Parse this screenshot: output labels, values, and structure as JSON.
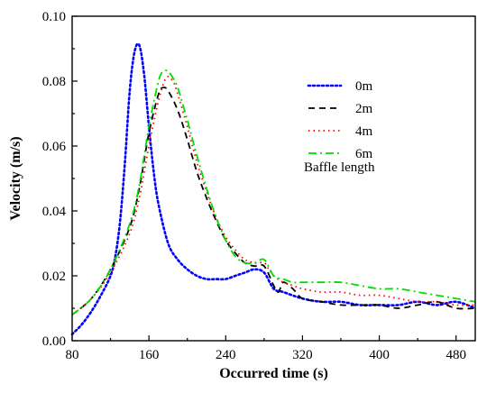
{
  "chart_data": {
    "type": "line",
    "xlabel": "Occurred time (s)",
    "ylabel": "Velocity (m/s)",
    "xlim": [
      80,
      500
    ],
    "ylim": [
      0.0,
      0.1
    ],
    "xticks": [
      80,
      160,
      240,
      320,
      400,
      480
    ],
    "yticks": [
      0.0,
      0.02,
      0.04,
      0.06,
      0.08,
      0.1
    ],
    "xtick_labels": [
      "80",
      "160",
      "240",
      "320",
      "400",
      "480"
    ],
    "ytick_labels": [
      "0.00",
      "0.02",
      "0.04",
      "0.06",
      "0.08",
      "0.10"
    ],
    "grid": false,
    "legend_title": "Baffle length",
    "legend_position": "top-right",
    "series": [
      {
        "name": "0m",
        "color": "#0000ff",
        "dash": "2,3",
        "x": [
          80,
          90,
          100,
          110,
          120,
          125,
          130,
          135,
          140,
          145,
          150,
          155,
          160,
          165,
          170,
          180,
          190,
          200,
          210,
          220,
          230,
          240,
          250,
          260,
          270,
          280,
          290,
          300,
          320,
          340,
          360,
          380,
          400,
          420,
          440,
          460,
          480,
          500
        ],
        "y": [
          0.002,
          0.005,
          0.009,
          0.014,
          0.02,
          0.026,
          0.037,
          0.055,
          0.077,
          0.089,
          0.091,
          0.082,
          0.066,
          0.052,
          0.042,
          0.03,
          0.025,
          0.022,
          0.02,
          0.019,
          0.019,
          0.019,
          0.02,
          0.021,
          0.022,
          0.021,
          0.016,
          0.015,
          0.013,
          0.012,
          0.012,
          0.011,
          0.011,
          0.011,
          0.012,
          0.011,
          0.012,
          0.01
        ]
      },
      {
        "name": "2m",
        "color": "#000000",
        "dash": "7,5",
        "x": [
          80,
          100,
          120,
          140,
          150,
          160,
          170,
          175,
          180,
          190,
          200,
          210,
          220,
          230,
          240,
          250,
          260,
          270,
          280,
          290,
          295,
          300,
          310,
          320,
          340,
          360,
          380,
          400,
          420,
          440,
          460,
          480,
          500
        ],
        "y": [
          0.008,
          0.013,
          0.022,
          0.035,
          0.047,
          0.064,
          0.076,
          0.078,
          0.077,
          0.071,
          0.062,
          0.052,
          0.044,
          0.037,
          0.031,
          0.027,
          0.024,
          0.023,
          0.023,
          0.017,
          0.015,
          0.018,
          0.016,
          0.013,
          0.012,
          0.011,
          0.011,
          0.011,
          0.01,
          0.011,
          0.012,
          0.01,
          0.01
        ]
      },
      {
        "name": "4m",
        "color": "#ff0000",
        "dash": "1.5,4",
        "x": [
          80,
          100,
          120,
          140,
          150,
          160,
          170,
          178,
          185,
          190,
          200,
          210,
          220,
          230,
          240,
          250,
          260,
          270,
          280,
          285,
          290,
          300,
          310,
          320,
          340,
          360,
          380,
          400,
          420,
          440,
          460,
          480,
          500
        ],
        "y": [
          0.008,
          0.013,
          0.021,
          0.033,
          0.044,
          0.06,
          0.074,
          0.081,
          0.08,
          0.076,
          0.066,
          0.055,
          0.046,
          0.038,
          0.032,
          0.028,
          0.025,
          0.024,
          0.024,
          0.022,
          0.02,
          0.018,
          0.017,
          0.016,
          0.015,
          0.015,
          0.014,
          0.014,
          0.013,
          0.012,
          0.012,
          0.011,
          0.011
        ]
      },
      {
        "name": "6m",
        "color": "#00dd00",
        "dash": "9,4,2,4",
        "x": [
          80,
          100,
          120,
          140,
          150,
          160,
          170,
          175,
          180,
          185,
          190,
          200,
          210,
          220,
          230,
          240,
          250,
          260,
          270,
          280,
          290,
          300,
          310,
          320,
          340,
          360,
          380,
          400,
          420,
          440,
          460,
          480,
          500
        ],
        "y": [
          0.008,
          0.013,
          0.022,
          0.036,
          0.048,
          0.066,
          0.08,
          0.083,
          0.083,
          0.081,
          0.078,
          0.068,
          0.057,
          0.047,
          0.038,
          0.031,
          0.026,
          0.024,
          0.024,
          0.025,
          0.02,
          0.019,
          0.018,
          0.018,
          0.018,
          0.018,
          0.017,
          0.016,
          0.016,
          0.015,
          0.014,
          0.013,
          0.012
        ]
      }
    ]
  }
}
